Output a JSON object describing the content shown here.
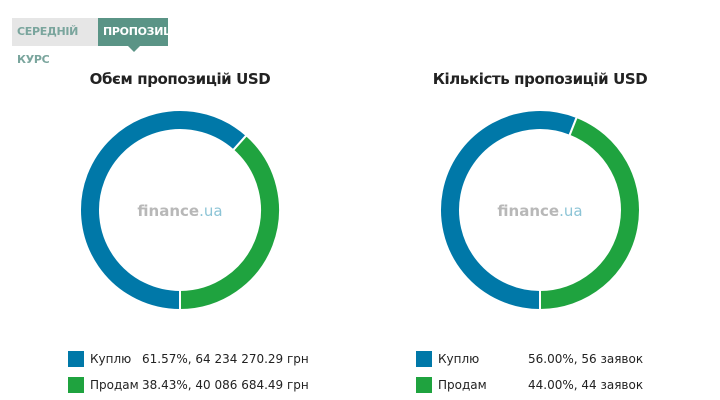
{
  "tabs": [
    {
      "label": "СЕРЕДНІЙ КУРС"
    },
    {
      "label": "ПРОПОЗИЦІЇ"
    }
  ],
  "watermark": {
    "brand": "finance",
    "suffix": ".ua"
  },
  "colors": {
    "buy": "#0078a8",
    "sell": "#1fa33f"
  },
  "chart_data": [
    {
      "type": "pie",
      "title": "Обєм пропозицій USD",
      "categories": [
        "Куплю",
        "Продам"
      ],
      "values": [
        61.57,
        38.43
      ],
      "legend": [
        {
          "label": "Куплю",
          "value": "61.57%, 64 234 270.29 грн"
        },
        {
          "label": "Продам",
          "value": "38.43%, 40 086 684.49 грн"
        }
      ]
    },
    {
      "type": "pie",
      "title": "Кількість пропозицій USD",
      "categories": [
        "Куплю",
        "Продам"
      ],
      "values": [
        56.0,
        44.0
      ],
      "legend": [
        {
          "label": "Куплю",
          "value": "56.00%, 56 заявок"
        },
        {
          "label": "Продам",
          "value": "44.00%, 44 заявок"
        }
      ]
    }
  ]
}
